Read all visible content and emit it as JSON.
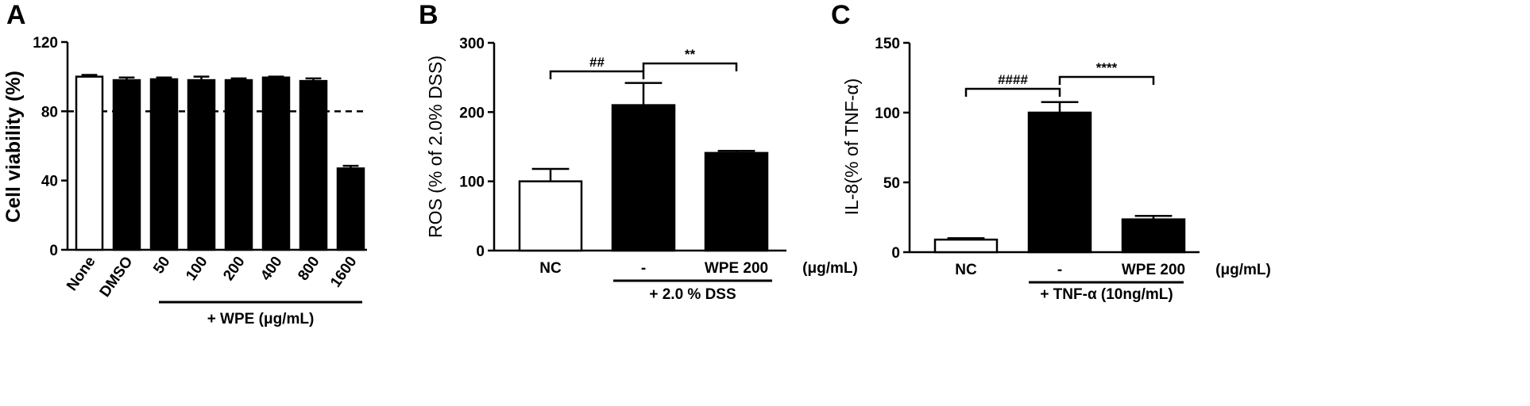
{
  "chart_data": [
    {
      "panel": "A",
      "type": "bar",
      "ylabel": "Cell viability (%)",
      "ylim": [
        0,
        120
      ],
      "yticks": [
        "0",
        "40",
        "80",
        "120"
      ],
      "categories": [
        "None",
        "DMSO",
        "50",
        "100",
        "200",
        "400",
        "800",
        "1600"
      ],
      "values": [
        100,
        98,
        98.5,
        98,
        98,
        99.5,
        97.5,
        47
      ],
      "errors": [
        1,
        1.5,
        1,
        2,
        1,
        0.5,
        1.5,
        1.5
      ],
      "fills": [
        "white",
        "black",
        "black",
        "black",
        "black",
        "black",
        "black",
        "black"
      ],
      "reference_line": 80,
      "group_label": "+ WPE (μg/mL)"
    },
    {
      "panel": "B",
      "type": "bar",
      "ylabel": "ROS (%  of 2.0% DSS)",
      "ylim": [
        0,
        300
      ],
      "yticks": [
        "0",
        "100",
        "200",
        "300"
      ],
      "categories": [
        "NC",
        "-",
        "WPE 200"
      ],
      "unit_label": "(μg/mL)",
      "values": [
        100,
        210,
        141
      ],
      "errors": [
        18,
        32,
        3
      ],
      "fills": [
        "white",
        "black",
        "black"
      ],
      "significance": [
        {
          "from": 0,
          "to": 1,
          "label": "##"
        },
        {
          "from": 1,
          "to": 2,
          "label": "**"
        }
      ],
      "group_label": "+ 2.0 % DSS"
    },
    {
      "panel": "C",
      "type": "bar",
      "ylabel": "IL-8(% of TNF-α)",
      "ylim": [
        0,
        150
      ],
      "yticks": [
        "0",
        "50",
        "100",
        "150"
      ],
      "categories": [
        "NC",
        "-",
        "WPE 200"
      ],
      "unit_label": "(μg/mL)",
      "values": [
        9,
        100,
        23.5
      ],
      "errors": [
        1,
        7.5,
        2.5
      ],
      "fills": [
        "white",
        "black",
        "black"
      ],
      "significance": [
        {
          "from": 0,
          "to": 1,
          "label": "####"
        },
        {
          "from": 1,
          "to": 2,
          "label": "****"
        }
      ],
      "group_label": "+ TNF-α (10ng/mL)"
    }
  ]
}
